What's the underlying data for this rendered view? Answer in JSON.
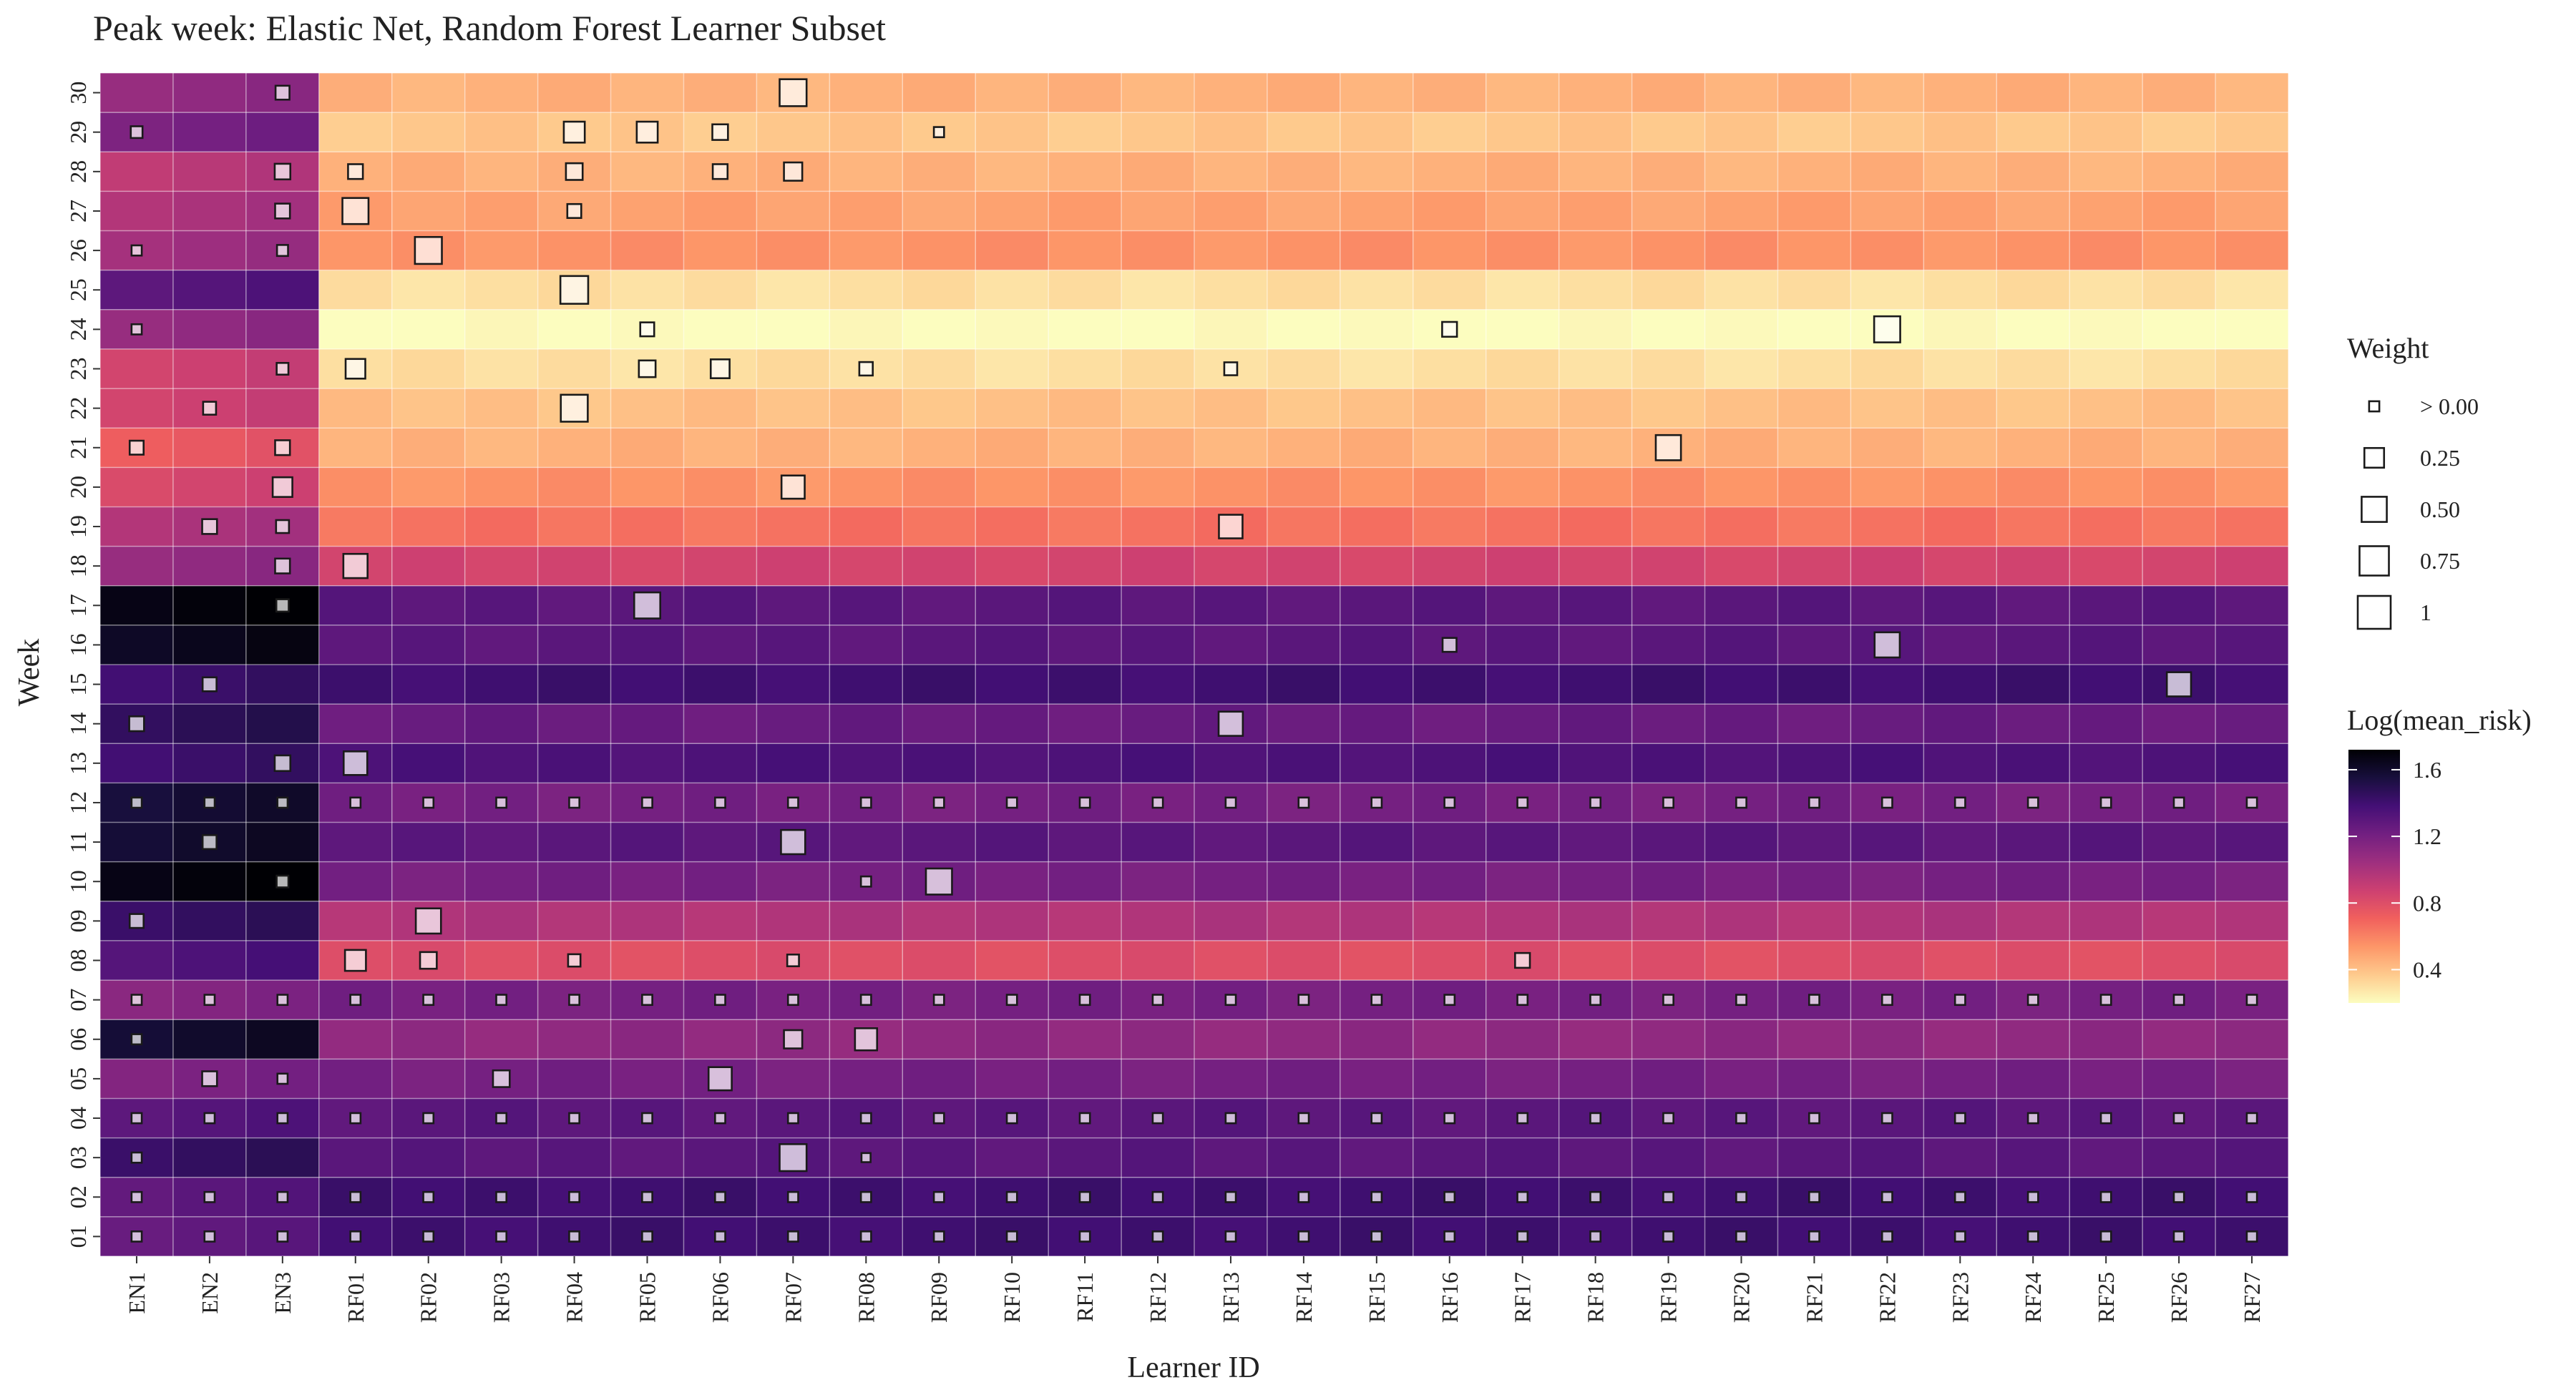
{
  "chart_data": {
    "type": "heatmap",
    "title": "Peak week: Elastic Net, Random Forest Learner Subset",
    "xlabel": "Learner ID",
    "ylabel": "Week",
    "x_categories": [
      "EN1",
      "EN2",
      "EN3",
      "RF01",
      "RF02",
      "RF03",
      "RF04",
      "RF05",
      "RF06",
      "RF07",
      "RF08",
      "RF09",
      "RF10",
      "RF11",
      "RF12",
      "RF13",
      "RF14",
      "RF15",
      "RF16",
      "RF17",
      "RF18",
      "RF19",
      "RF20",
      "RF21",
      "RF22",
      "RF23",
      "RF24",
      "RF25",
      "RF26",
      "RF27"
    ],
    "y_categories": [
      "01",
      "02",
      "03",
      "04",
      "05",
      "06",
      "07",
      "08",
      "09",
      "10",
      "11",
      "12",
      "13",
      "14",
      "15",
      "16",
      "17",
      "18",
      "19",
      "20",
      "21",
      "22",
      "23",
      "24",
      "25",
      "26",
      "27",
      "28",
      "29",
      "30"
    ],
    "fill_legend": {
      "title": "Log(mean_risk)",
      "breaks": [
        1.6,
        1.2,
        0.8,
        0.4
      ],
      "break_labels": [
        "1.6",
        "1.2",
        "0.8",
        "0.4"
      ],
      "range": [
        0.2,
        1.72
      ],
      "palette": [
        "#fcfdbf",
        "#feca8d",
        "#fd9668",
        "#f1605d",
        "#cd4071",
        "#9e2f7f",
        "#721f81",
        "#440f76",
        "#180f3d",
        "#000004"
      ]
    },
    "size_legend": {
      "title": "Weight",
      "breaks": [
        0.02,
        0.25,
        0.5,
        0.75,
        1
      ],
      "break_labels": [
        "> 0.00",
        "0.25",
        "0.50",
        "0.75",
        "1"
      ]
    },
    "row_values": {
      "EN": [
        1.28,
        1.3,
        1.45,
        1.32,
        1.18,
        1.6,
        1.15,
        1.35,
        1.45,
        1.7,
        1.6,
        1.58,
        1.42,
        1.48,
        1.42,
        1.65,
        1.7,
        1.1,
        1.0,
        0.85,
        0.75,
        0.88,
        0.88,
        1.1,
        1.32,
        1.05,
        1.0,
        0.95,
        1.2,
        1.1
      ],
      "RF": [
        1.4,
        1.4,
        1.3,
        1.3,
        1.2,
        1.1,
        1.2,
        0.8,
        0.98,
        1.2,
        1.3,
        1.2,
        1.35,
        1.25,
        1.4,
        1.3,
        1.3,
        0.85,
        0.65,
        0.55,
        0.45,
        0.4,
        0.3,
        0.2,
        0.3,
        0.55,
        0.5,
        0.45,
        0.38,
        0.45
      ]
    },
    "weights": [
      {
        "w": "01",
        "l": [
          "all"
        ],
        "v": 0.02
      },
      {
        "w": "02",
        "l": [
          "all"
        ],
        "v": 0.02
      },
      {
        "w": "04",
        "l": [
          "all"
        ],
        "v": 0.02
      },
      {
        "w": "07",
        "l": [
          "all"
        ],
        "v": 0.02
      },
      {
        "w": "12",
        "l": [
          "all"
        ],
        "v": 0.02
      },
      {
        "w": "03",
        "l": [
          "EN1"
        ],
        "v": 0.02
      },
      {
        "w": "03",
        "l": [
          "RF07"
        ],
        "v": 0.6
      },
      {
        "w": "03",
        "l": [
          "RF08"
        ],
        "v": 0.01
      },
      {
        "w": "05",
        "l": [
          "EN2"
        ],
        "v": 0.1
      },
      {
        "w": "05",
        "l": [
          "EN3"
        ],
        "v": 0.02
      },
      {
        "w": "05",
        "l": [
          "RF03"
        ],
        "v": 0.15
      },
      {
        "w": "05",
        "l": [
          "RF06"
        ],
        "v": 0.4
      },
      {
        "w": "06",
        "l": [
          "EN1"
        ],
        "v": 0.02
      },
      {
        "w": "06",
        "l": [
          "RF07"
        ],
        "v": 0.2
      },
      {
        "w": "06",
        "l": [
          "RF08"
        ],
        "v": 0.35
      },
      {
        "w": "08",
        "l": [
          "RF01"
        ],
        "v": 0.3
      },
      {
        "w": "08",
        "l": [
          "RF02"
        ],
        "v": 0.15
      },
      {
        "w": "08",
        "l": [
          "RF04"
        ],
        "v": 0.05
      },
      {
        "w": "08",
        "l": [
          "RF07"
        ],
        "v": 0.04
      },
      {
        "w": "08",
        "l": [
          "RF17"
        ],
        "v": 0.1
      },
      {
        "w": "09",
        "l": [
          "EN1"
        ],
        "v": 0.08
      },
      {
        "w": "09",
        "l": [
          "RF02"
        ],
        "v": 0.5
      },
      {
        "w": "10",
        "l": [
          "EN3"
        ],
        "v": 0.04
      },
      {
        "w": "10",
        "l": [
          "RF08"
        ],
        "v": 0.02
      },
      {
        "w": "10",
        "l": [
          "RF09"
        ],
        "v": 0.55
      },
      {
        "w": "11",
        "l": [
          "EN2"
        ],
        "v": 0.08
      },
      {
        "w": "11",
        "l": [
          "RF07"
        ],
        "v": 0.45
      },
      {
        "w": "13",
        "l": [
          "EN3"
        ],
        "v": 0.12
      },
      {
        "w": "13",
        "l": [
          "RF01"
        ],
        "v": 0.42
      },
      {
        "w": "14",
        "l": [
          "EN1"
        ],
        "v": 0.1
      },
      {
        "w": "14",
        "l": [
          "RF13"
        ],
        "v": 0.45
      },
      {
        "w": "15",
        "l": [
          "EN2"
        ],
        "v": 0.08
      },
      {
        "w": "15",
        "l": [
          "RF26"
        ],
        "v": 0.45
      },
      {
        "w": "16",
        "l": [
          "RF16"
        ],
        "v": 0.08
      },
      {
        "w": "16",
        "l": [
          "RF22"
        ],
        "v": 0.5
      },
      {
        "w": "17",
        "l": [
          "EN3"
        ],
        "v": 0.05
      },
      {
        "w": "17",
        "l": [
          "RF05"
        ],
        "v": 0.55
      },
      {
        "w": "18",
        "l": [
          "EN3"
        ],
        "v": 0.1
      },
      {
        "w": "18",
        "l": [
          "RF01"
        ],
        "v": 0.45
      },
      {
        "w": "19",
        "l": [
          "EN2"
        ],
        "v": 0.1
      },
      {
        "w": "19",
        "l": [
          "EN3"
        ],
        "v": 0.06
      },
      {
        "w": "19",
        "l": [
          "RF13"
        ],
        "v": 0.42
      },
      {
        "w": "20",
        "l": [
          "EN3"
        ],
        "v": 0.25
      },
      {
        "w": "20",
        "l": [
          "RF07"
        ],
        "v": 0.4
      },
      {
        "w": "21",
        "l": [
          "EN1"
        ],
        "v": 0.08
      },
      {
        "w": "21",
        "l": [
          "EN3"
        ],
        "v": 0.1
      },
      {
        "w": "21",
        "l": [
          "RF19"
        ],
        "v": 0.5
      },
      {
        "w": "22",
        "l": [
          "EN2"
        ],
        "v": 0.06
      },
      {
        "w": "22",
        "l": [
          "RF04"
        ],
        "v": 0.6
      },
      {
        "w": "23",
        "l": [
          "EN3"
        ],
        "v": 0.04
      },
      {
        "w": "23",
        "l": [
          "RF01"
        ],
        "v": 0.25
      },
      {
        "w": "23",
        "l": [
          "RF05"
        ],
        "v": 0.15
      },
      {
        "w": "23",
        "l": [
          "RF06"
        ],
        "v": 0.22
      },
      {
        "w": "23",
        "l": [
          "RF08"
        ],
        "v": 0.07
      },
      {
        "w": "23",
        "l": [
          "RF13"
        ],
        "v": 0.06
      },
      {
        "w": "24",
        "l": [
          "EN1"
        ],
        "v": 0.02
      },
      {
        "w": "24",
        "l": [
          "RF05"
        ],
        "v": 0.08
      },
      {
        "w": "24",
        "l": [
          "RF16"
        ],
        "v": 0.1
      },
      {
        "w": "24",
        "l": [
          "RF22"
        ],
        "v": 0.55
      },
      {
        "w": "25",
        "l": [
          "RF04"
        ],
        "v": 0.65
      },
      {
        "w": "26",
        "l": [
          "EN1"
        ],
        "v": 0.02
      },
      {
        "w": "26",
        "l": [
          "EN3"
        ],
        "v": 0.03
      },
      {
        "w": "26",
        "l": [
          "RF02"
        ],
        "v": 0.6
      },
      {
        "w": "27",
        "l": [
          "EN3"
        ],
        "v": 0.1
      },
      {
        "w": "27",
        "l": [
          "RF01"
        ],
        "v": 0.55
      },
      {
        "w": "27",
        "l": [
          "RF04"
        ],
        "v": 0.08
      },
      {
        "w": "28",
        "l": [
          "EN3"
        ],
        "v": 0.12
      },
      {
        "w": "28",
        "l": [
          "RF01"
        ],
        "v": 0.1
      },
      {
        "w": "28",
        "l": [
          "RF04"
        ],
        "v": 0.15
      },
      {
        "w": "28",
        "l": [
          "RF06"
        ],
        "v": 0.1
      },
      {
        "w": "28",
        "l": [
          "RF07"
        ],
        "v": 0.2
      },
      {
        "w": "29",
        "l": [
          "EN1"
        ],
        "v": 0.04
      },
      {
        "w": "29",
        "l": [
          "RF04"
        ],
        "v": 0.3
      },
      {
        "w": "29",
        "l": [
          "RF05"
        ],
        "v": 0.3
      },
      {
        "w": "29",
        "l": [
          "RF06"
        ],
        "v": 0.12
      },
      {
        "w": "29",
        "l": [
          "RF09"
        ],
        "v": 0.02
      },
      {
        "w": "30",
        "l": [
          "EN3"
        ],
        "v": 0.08
      },
      {
        "w": "30",
        "l": [
          "RF07"
        ],
        "v": 0.6
      }
    ]
  }
}
